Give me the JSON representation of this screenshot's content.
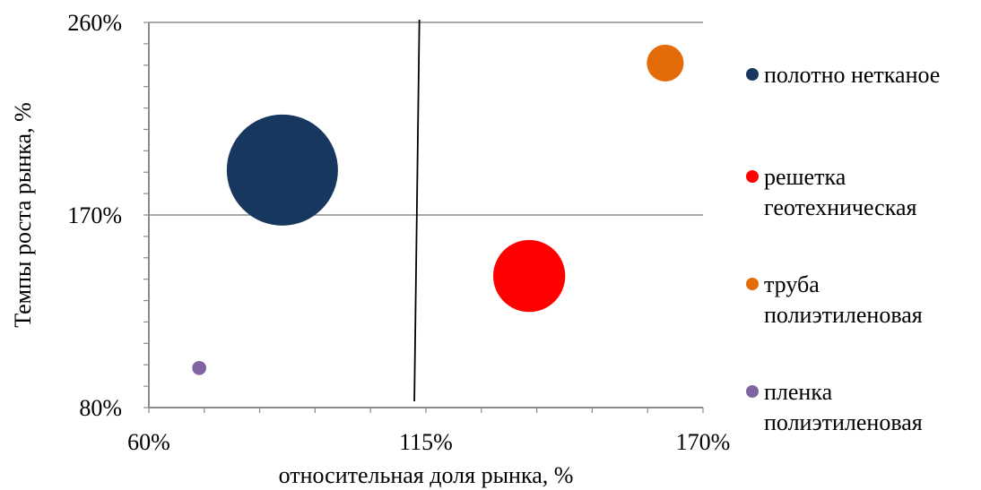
{
  "chart_data": {
    "type": "bubble",
    "xlabel": "относительная доля рынка, %",
    "ylabel": "Темпы роста рынка, %",
    "xlim": [
      60,
      170
    ],
    "ylim": [
      80,
      260
    ],
    "x_ticks": [
      {
        "value": 60,
        "label": "60%"
      },
      {
        "value": 115,
        "label": "115%"
      },
      {
        "value": 170,
        "label": "170%"
      }
    ],
    "y_ticks": [
      {
        "value": 80,
        "label": "80%"
      },
      {
        "value": 170,
        "label": "170%"
      },
      {
        "value": 260,
        "label": "260%"
      }
    ],
    "horizontal_divider": 170,
    "vertical_divider": {
      "x_top": 113.7,
      "x_bottom": 112.7
    },
    "grid": "horizontal major gridlines",
    "legend_position": "right",
    "series": [
      {
        "name": "полотно нетканое",
        "x": 86.5,
        "y": 191,
        "size": 100,
        "color": "#17375e"
      },
      {
        "name": "решетка геотехническая",
        "x": 135.5,
        "y": 141.5,
        "size": 42,
        "color": "#ff0000"
      },
      {
        "name": "труба полиэтиленовая",
        "x": 162.5,
        "y": 241,
        "size": 11,
        "color": "#e36c09"
      },
      {
        "name": "пленка полиэтиленовая",
        "x": 70,
        "y": 98.5,
        "size": 1.6,
        "color": "#8064a2"
      }
    ],
    "legend": [
      {
        "lines": [
          "полотно нетканое"
        ]
      },
      {
        "lines": [
          "решетка",
          "геотехническая"
        ]
      },
      {
        "lines": [
          "труба",
          "полиэтиленовая"
        ]
      },
      {
        "lines": [
          "пленка",
          "полиэтиленовая"
        ]
      }
    ]
  }
}
